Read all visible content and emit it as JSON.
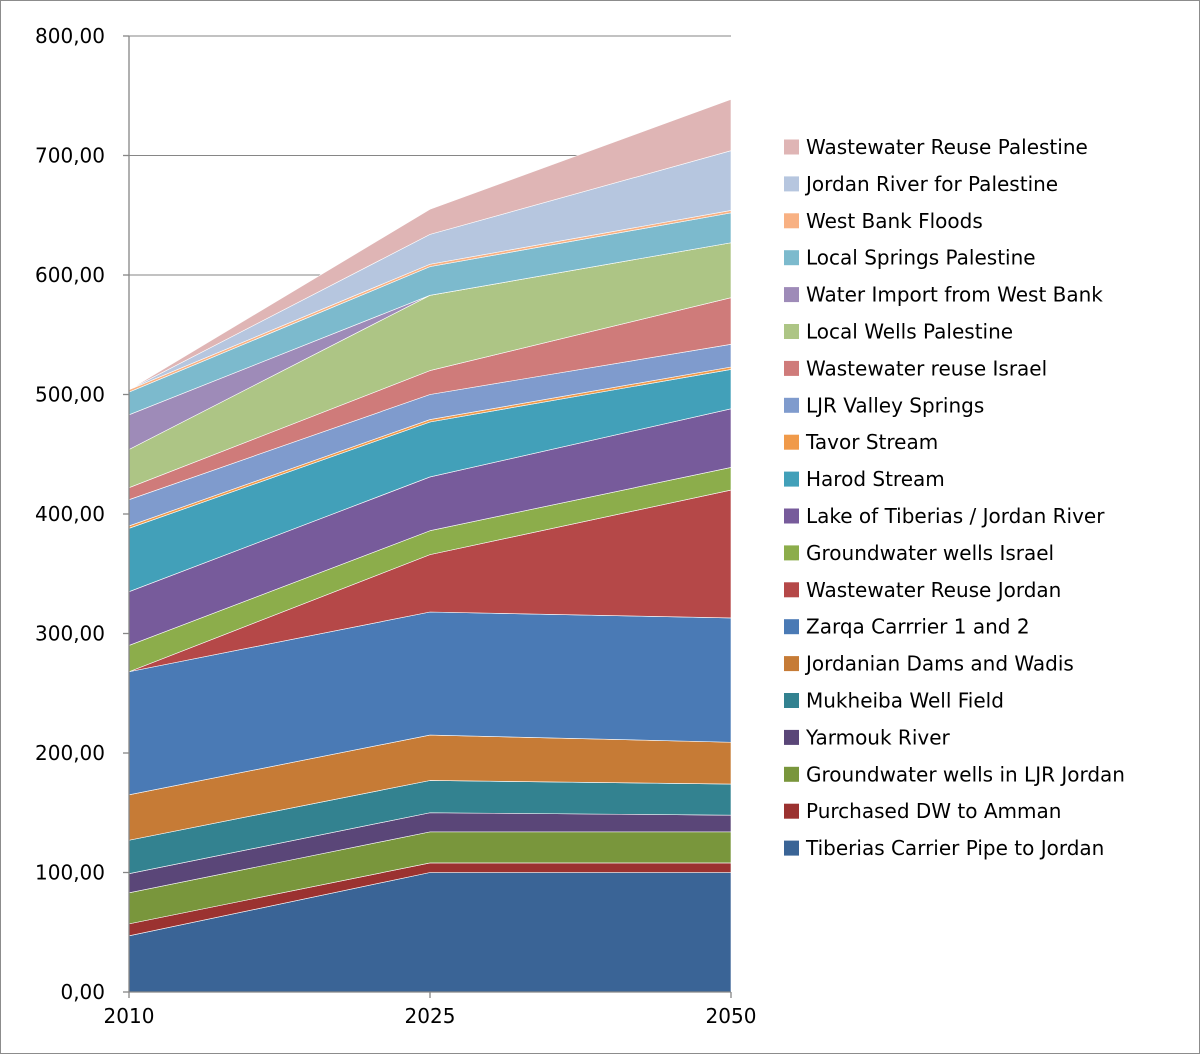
{
  "chart_data": {
    "type": "area",
    "stacked": true,
    "categories": [
      "2010",
      "2025",
      "2050"
    ],
    "ylim": [
      0,
      800
    ],
    "y_ticks": [
      "0,00",
      "100,00",
      "200,00",
      "300,00",
      "400,00",
      "500,00",
      "600,00",
      "700,00",
      "800,00"
    ],
    "grid": "horizontal major gridlines",
    "legend_position": "right",
    "series": [
      {
        "name": "Tiberias Carrier Pipe to Jordan",
        "color": "#3a6496",
        "values": [
          47,
          100,
          100
        ]
      },
      {
        "name": "Purchased DW to Amman",
        "color": "#9b3230",
        "values": [
          10,
          8,
          8
        ]
      },
      {
        "name": "Groundwater wells in LJR Jordan",
        "color": "#79963c",
        "values": [
          26,
          26,
          26
        ]
      },
      {
        "name": "Yarmouk River",
        "color": "#5a4678",
        "values": [
          16,
          16,
          14
        ]
      },
      {
        "name": "Mukheiba Well Field",
        "color": "#338290",
        "values": [
          28,
          27,
          26
        ]
      },
      {
        "name": "Jordanian Dams and Wadis",
        "color": "#c67b36",
        "values": [
          38,
          38,
          35
        ]
      },
      {
        "name": "Zarqa Carrrier 1  and 2",
        "color": "#4a7ab5",
        "values": [
          103,
          103,
          104
        ]
      },
      {
        "name": "Wastewater Reuse Jordan",
        "color": "#b54848",
        "values": [
          0,
          48,
          107
        ]
      },
      {
        "name": "Groundwater wells Israel",
        "color": "#8cad4b",
        "values": [
          22,
          20,
          19
        ]
      },
      {
        "name": "Lake of Tiberias / Jordan River",
        "color": "#775b9b",
        "values": [
          45,
          45,
          49
        ]
      },
      {
        "name": "Harod Stream",
        "color": "#42a0b9",
        "values": [
          53,
          46,
          33
        ]
      },
      {
        "name": "Tavor Stream",
        "color": "#f09a4a",
        "values": [
          2,
          2,
          2
        ]
      },
      {
        "name": "LJR Valley Springs",
        "color": "#7f9bcd",
        "values": [
          22,
          21,
          19
        ]
      },
      {
        "name": "Wastewater reuse Israel",
        "color": "#cf7b7a",
        "values": [
          10,
          20,
          39
        ]
      },
      {
        "name": "Local Wells Palestine",
        "color": "#adc585",
        "values": [
          32,
          63,
          46
        ]
      },
      {
        "name": "Water Import from West Bank",
        "color": "#9e8bb8",
        "values": [
          29,
          0,
          0
        ]
      },
      {
        "name": "Local Springs Palestine",
        "color": "#7cbacd",
        "values": [
          19,
          24,
          25
        ]
      },
      {
        "name": "West Bank Floods",
        "color": "#f8b183",
        "values": [
          2,
          2,
          2
        ]
      },
      {
        "name": "Jordan River for Palestine",
        "color": "#b6c6df",
        "values": [
          0,
          25,
          50
        ]
      },
      {
        "name": "Wastewater Reuse Palestine",
        "color": "#dfb5b5",
        "values": [
          0,
          21,
          43
        ]
      }
    ]
  }
}
